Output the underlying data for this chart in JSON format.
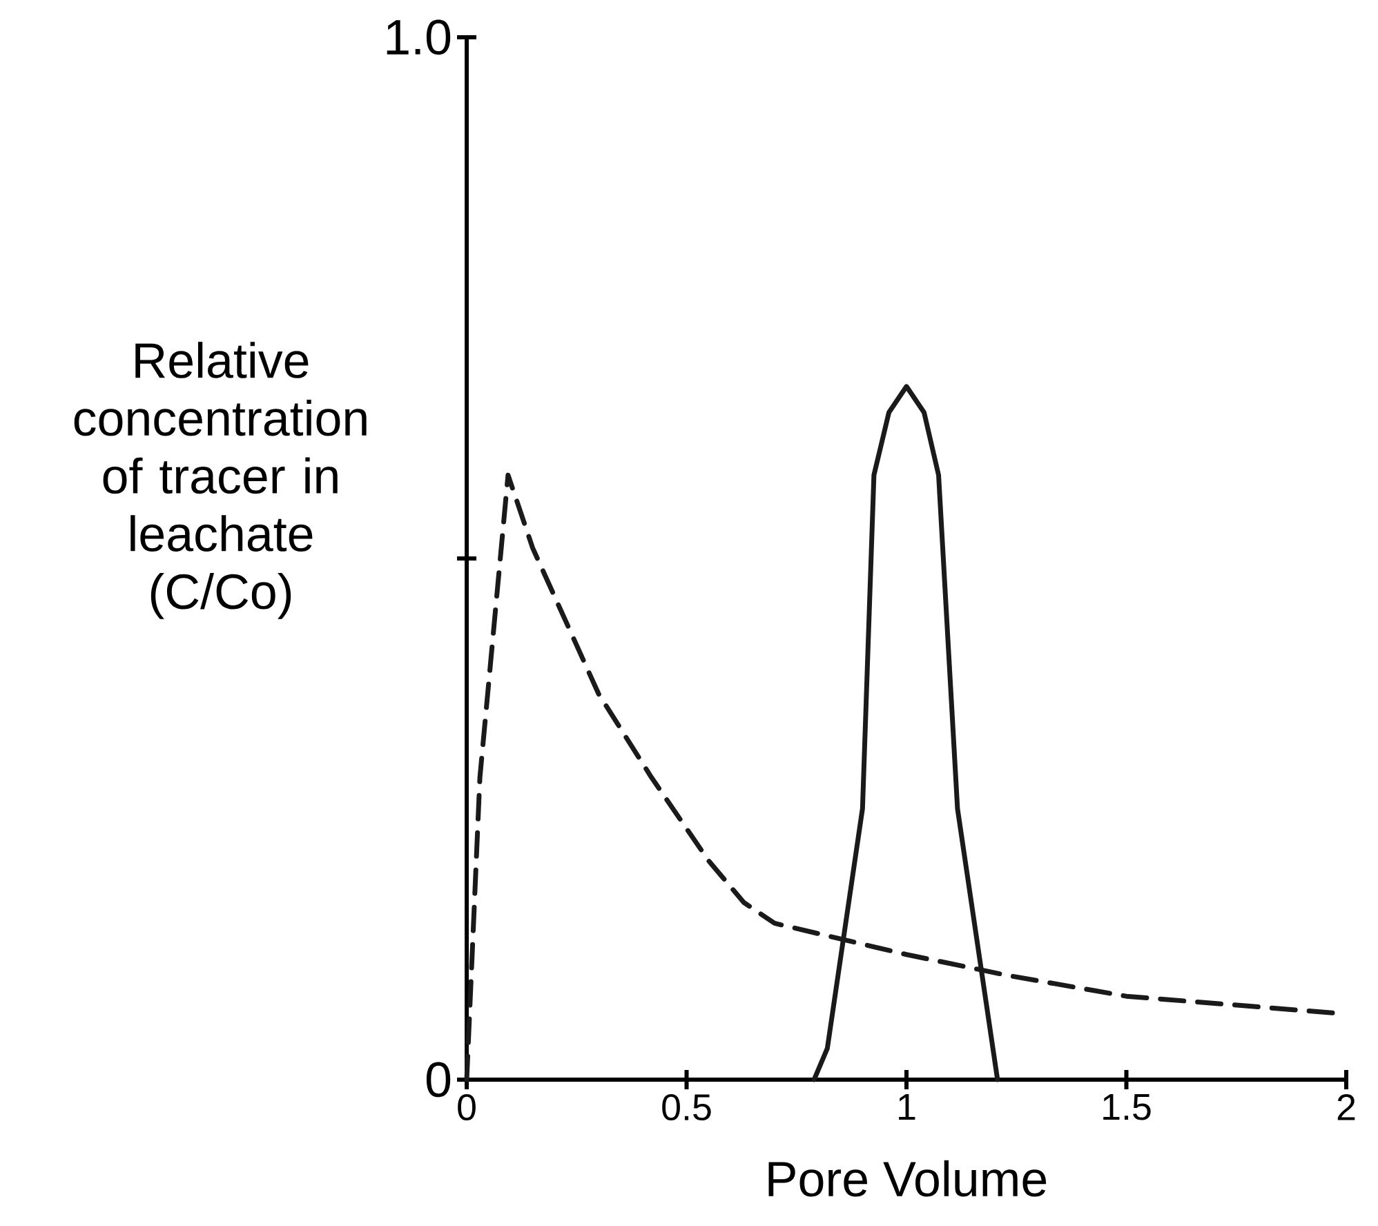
{
  "chart_data": {
    "type": "line",
    "xlabel": "Pore Volume",
    "ylabel": "Relative concentration of tracer in leachate (C/Co)",
    "xlim": [
      0,
      2
    ],
    "ylim": [
      0,
      1
    ],
    "xticks": [
      0,
      0.5,
      1,
      1.5,
      2
    ],
    "yticks": [
      0,
      {
        "value": 0.5,
        "label": null
      },
      {
        "value": 1,
        "label": "1.0"
      }
    ],
    "marker": "none",
    "series": [
      {
        "color": "#1a1a1a",
        "line_style": "dashed",
        "x": [
          0,
          0.03,
          0.094,
          0.15,
          0.3,
          0.42,
          0.55,
          0.63,
          0.7,
          1.0,
          1.23,
          1.5,
          1.97
        ],
        "values": [
          0,
          0.29,
          0.58,
          0.51,
          0.37,
          0.29,
          0.21,
          0.17,
          0.15,
          0.12,
          0.1,
          0.08,
          0.064
        ]
      },
      {
        "color": "#1a1a1a",
        "line_style": "solid",
        "x": [
          0.79,
          0.82,
          0.9,
          0.926,
          0.96,
          1.0,
          1.04,
          1.073,
          1.116,
          1.207
        ],
        "values": [
          0,
          0.03,
          0.26,
          0.58,
          0.64,
          0.665,
          0.64,
          0.58,
          0.26,
          0
        ]
      }
    ]
  }
}
